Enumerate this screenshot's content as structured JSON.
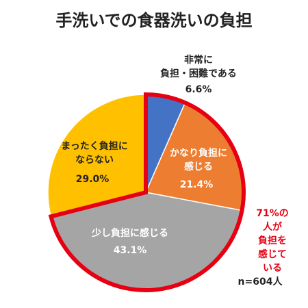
{
  "chart_data": {
    "type": "pie",
    "title": "手洗いでの食器洗いの負担",
    "categories": [
      "非常に\n負担・困難である",
      "かなり負担に\n感じる",
      "少し負担に感じる",
      "まったく負担に\nならない"
    ],
    "values": [
      6.6,
      21.4,
      43.1,
      29.0
    ],
    "value_labels": [
      "6.6%",
      "21.4%",
      "43.1%",
      "29.0%"
    ],
    "colors": [
      "#4472c4",
      "#ed7d31",
      "#a5a5a5",
      "#ffc000"
    ],
    "annotations": [
      "71%の人が\n負担を\n感じている",
      "n=604人"
    ]
  }
}
